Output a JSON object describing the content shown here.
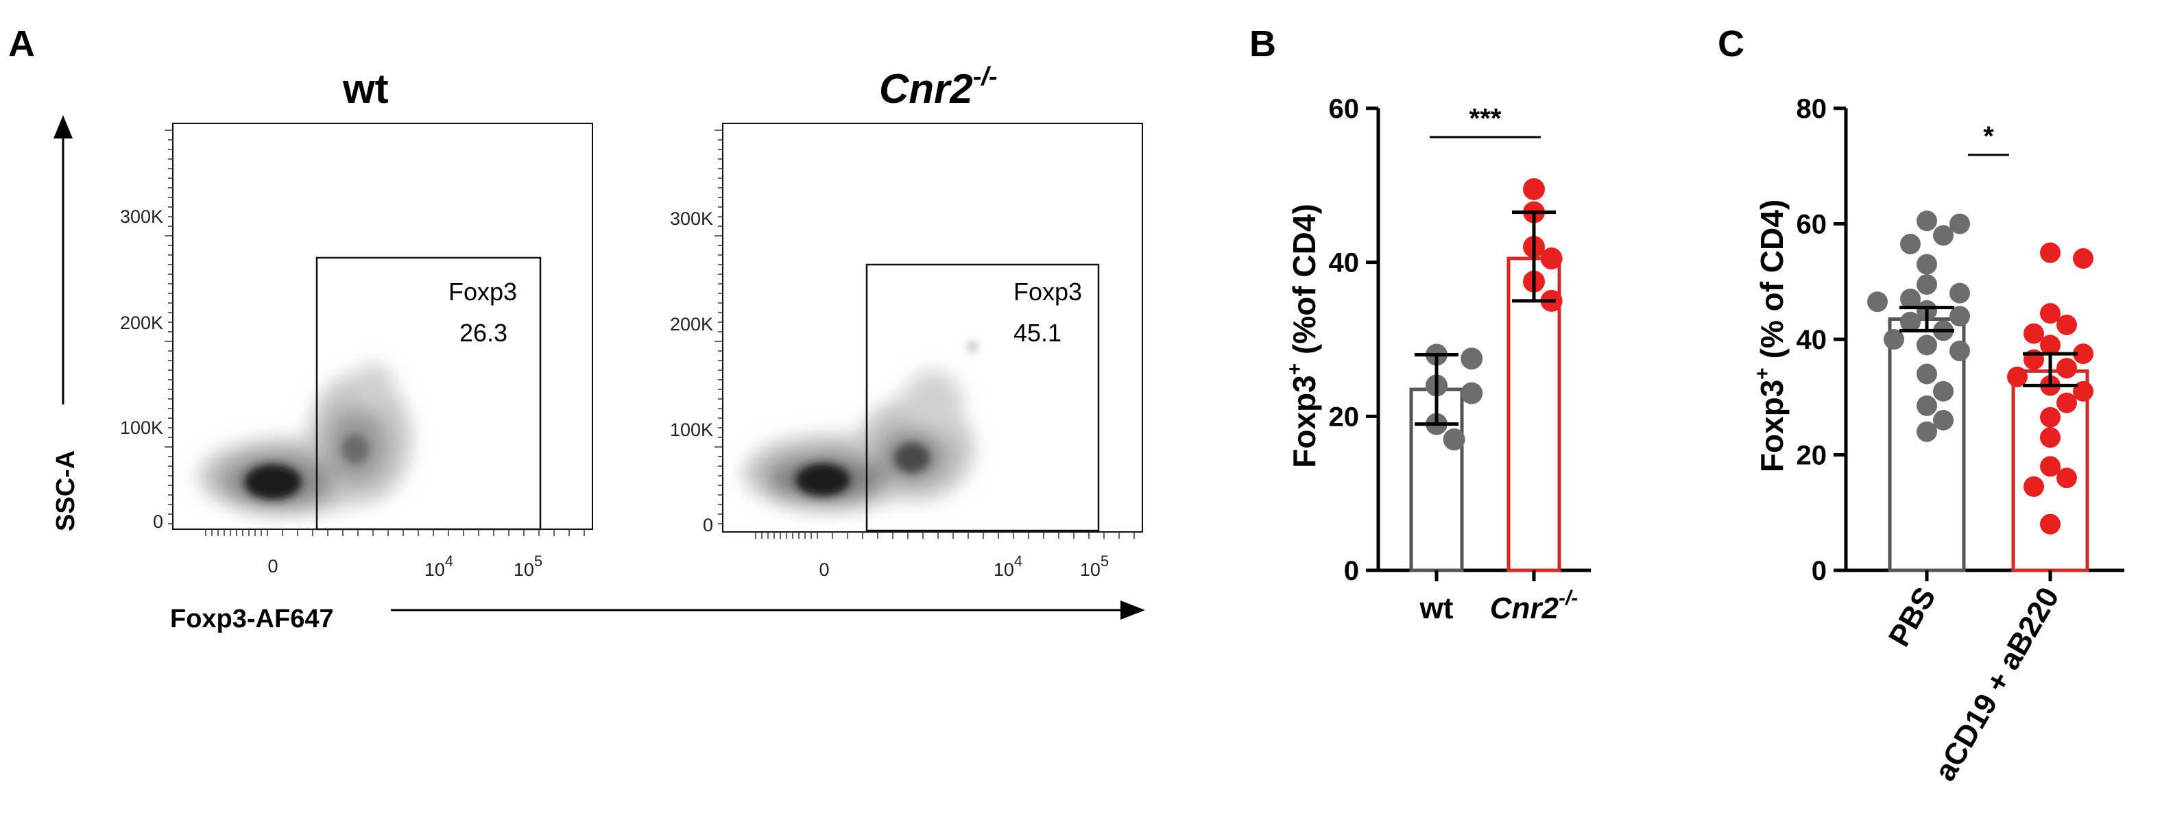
{
  "panels": {
    "A": "A",
    "B": "B",
    "C": "C"
  },
  "flow": {
    "y_axis_label": "SSC-A",
    "x_axis_label": "Foxp3-AF647",
    "y_ticks": [
      "300K",
      "200K",
      "100K",
      "0"
    ],
    "x_tick_zero": "0",
    "x_tick_base": "10",
    "x_tick_exp4": "4",
    "x_tick_exp5": "5",
    "plots": [
      {
        "title": "wt",
        "title_sup": "",
        "gate_name": "Foxp3",
        "gate_value": "26.3"
      },
      {
        "title": "Cnr2",
        "title_sup": "-/-",
        "gate_name": "Foxp3",
        "gate_value": "45.1"
      }
    ]
  },
  "chart_data": [
    {
      "panel": "B",
      "type": "bar",
      "ylabel_main": "Foxp3",
      "ylabel_sup": "+",
      "ylabel_rest": " (%of CD4)",
      "ylim": [
        0,
        60
      ],
      "yticks": [
        "0",
        "20",
        "40",
        "60"
      ],
      "significance": "***",
      "categories": [
        {
          "label": "wt",
          "label_sup": "",
          "italic": false,
          "mean": 23.5,
          "error": [
            19.0,
            28.0
          ],
          "points": [
            28.0,
            27.5,
            24.0,
            23.0,
            19.0,
            17.0
          ],
          "bar_color": "#555555",
          "point_color": "#6d6d6d"
        },
        {
          "label": "Cnr2",
          "label_sup": "-/-",
          "italic": true,
          "mean": 40.5,
          "error": [
            35.0,
            46.5
          ],
          "points": [
            49.5,
            46.5,
            42.0,
            40.5,
            37.5,
            35.0
          ],
          "bar_color": "#d42a2a",
          "point_color": "#e8201f"
        }
      ]
    },
    {
      "panel": "C",
      "type": "bar",
      "ylabel_main": "Foxp3",
      "ylabel_sup": "+",
      "ylabel_rest": " (% of CD4)",
      "ylim": [
        0,
        80
      ],
      "yticks": [
        "0",
        "20",
        "40",
        "60",
        "80"
      ],
      "significance": "*",
      "categories": [
        {
          "label": "PBS",
          "label_sup": "",
          "italic": false,
          "mean": 43.5,
          "error": [
            41.5,
            45.5
          ],
          "points": [
            60.5,
            60.0,
            58.0,
            56.5,
            53.0,
            49.5,
            48.0,
            47.0,
            46.5,
            45.0,
            44.0,
            43.0,
            41.5,
            40.0,
            39.0,
            38.0,
            34.0,
            31.0,
            28.5,
            26.0,
            24.0
          ],
          "bar_color": "#555555",
          "point_color": "#6d6d6d"
        },
        {
          "label": "aCD19 + aB220",
          "label_sup": "",
          "italic": false,
          "mean": 34.5,
          "error": [
            32.0,
            37.5
          ],
          "points": [
            55.0,
            54.0,
            44.5,
            42.5,
            41.0,
            39.0,
            37.5,
            36.5,
            35.0,
            33.5,
            32.0,
            31.0,
            29.0,
            26.5,
            23.0,
            18.0,
            16.0,
            14.5,
            8.0
          ],
          "bar_color": "#d42a2a",
          "point_color": "#e8201f"
        }
      ]
    }
  ],
  "colors": {
    "axis": "#000000",
    "gray_bar": "#555555",
    "red_bar": "#d42a2a"
  }
}
